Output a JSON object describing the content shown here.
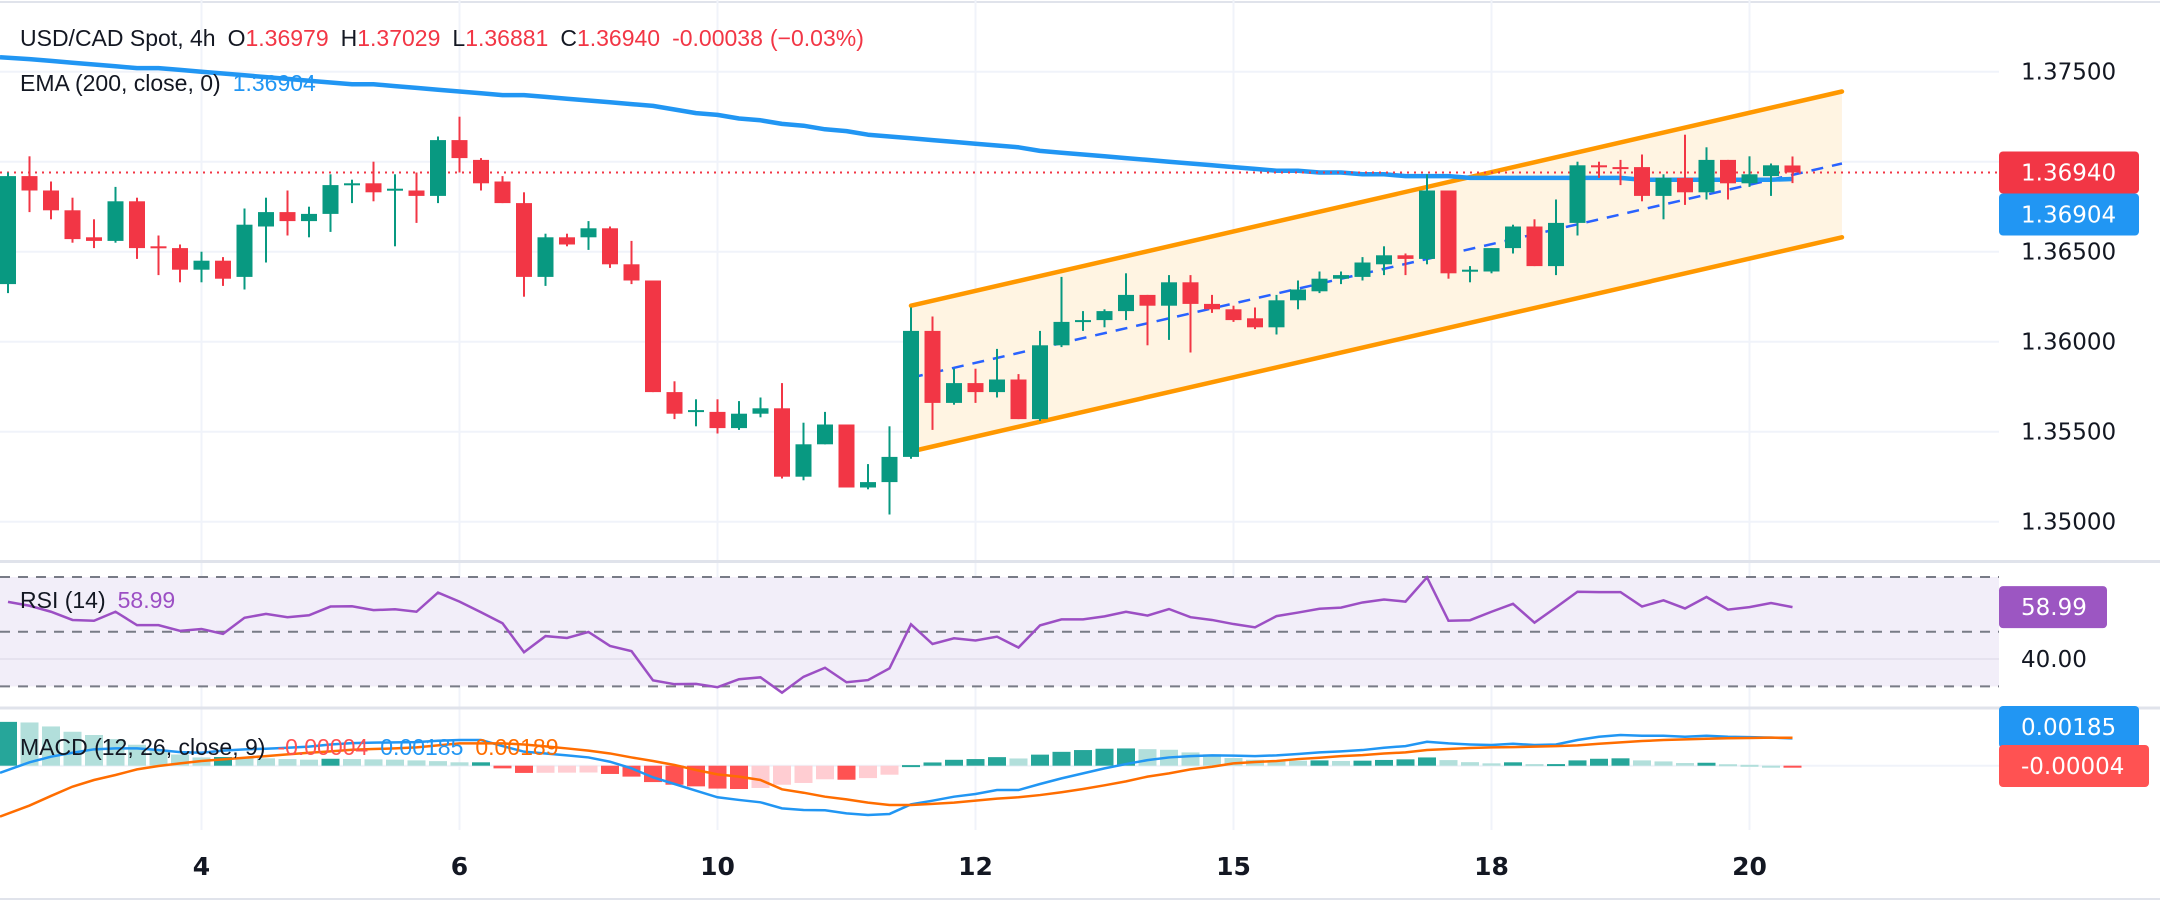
{
  "header": {
    "symbol": "USD/CAD Spot, 4h",
    "o_label": "O",
    "open": "1.36979",
    "h_label": "H",
    "high": "1.37029",
    "l_label": "L",
    "low": "1.36881",
    "c_label": "C",
    "close": "1.36940",
    "change": "-0.00038",
    "change_pct": "(−0.03%)"
  },
  "ema_legend": {
    "label": "EMA (200, close, 0)",
    "value": "1.36904"
  },
  "rsi_legend": {
    "label": "RSI (14)",
    "value": "58.99"
  },
  "macd_legend": {
    "label": "MACD (12, 26, close, 9)",
    "hist": "-0.00004",
    "macd": "0.00185",
    "signal": "0.00189"
  },
  "price_axis": {
    "ticks": [
      "1.37500",
      "1.36500",
      "1.36000",
      "1.35500",
      "1.35000"
    ],
    "last_price_tag": "1.36940",
    "ema_tag": "1.36904"
  },
  "rsi_axis": {
    "ticks": [
      "40.00"
    ],
    "value_tag": "58.99"
  },
  "macd_axis": {
    "macd_tag": "0.00185",
    "hist_tag": "-0.00004"
  },
  "time_axis": {
    "ticks": [
      {
        "label": "4",
        "bar": 9
      },
      {
        "label": "6",
        "bar": 21
      },
      {
        "label": "10",
        "bar": 33
      },
      {
        "label": "12",
        "bar": 45
      },
      {
        "label": "15",
        "bar": 57
      },
      {
        "label": "18",
        "bar": 69
      },
      {
        "label": "20",
        "bar": 81
      }
    ]
  },
  "colors": {
    "up": "#089981",
    "down": "#f23645",
    "ema": "#2196f3",
    "channel": "#ff9800",
    "channel_fill": "#fff4e2",
    "midline": "#2962ff",
    "rsi": "#9c4fc4",
    "rsi_band": "#f2eef9",
    "macd": "#2196f3",
    "signal": "#ff6d00",
    "hist_up_strong": "#26a69a",
    "hist_up_weak": "#b2dfdb",
    "hist_dn_strong": "#ff5252",
    "hist_dn_weak": "#ffcdd2",
    "text": "#131722"
  },
  "chart_data": {
    "type": "candlestick",
    "timeframe": "4h",
    "price_range": [
      1.3475,
      1.379
    ],
    "candles": [
      [
        1.3632,
        1.3694,
        1.3627,
        1.3692
      ],
      [
        1.3692,
        1.3703,
        1.3672,
        1.3684
      ],
      [
        1.3684,
        1.3689,
        1.3668,
        1.3673
      ],
      [
        1.3673,
        1.368,
        1.3655,
        1.3657
      ],
      [
        1.3658,
        1.3668,
        1.3652,
        1.3656
      ],
      [
        1.3656,
        1.3686,
        1.3655,
        1.3678
      ],
      [
        1.3678,
        1.368,
        1.3646,
        1.3652
      ],
      [
        1.3653,
        1.3659,
        1.3637,
        1.3652
      ],
      [
        1.3652,
        1.3654,
        1.3633,
        1.364
      ],
      [
        1.364,
        1.365,
        1.3633,
        1.3645
      ],
      [
        1.3645,
        1.3647,
        1.3631,
        1.3635
      ],
      [
        1.3636,
        1.3674,
        1.3629,
        1.3665
      ],
      [
        1.3664,
        1.368,
        1.3644,
        1.3672
      ],
      [
        1.3672,
        1.3684,
        1.3659,
        1.3667
      ],
      [
        1.3667,
        1.3675,
        1.3658,
        1.3671
      ],
      [
        1.3671,
        1.3693,
        1.3661,
        1.3687
      ],
      [
        1.3687,
        1.369,
        1.3677,
        1.3688
      ],
      [
        1.3688,
        1.37,
        1.3678,
        1.3683
      ],
      [
        1.3684,
        1.3693,
        1.3653,
        1.3685
      ],
      [
        1.3684,
        1.3694,
        1.3666,
        1.3681
      ],
      [
        1.3681,
        1.3714,
        1.3677,
        1.3712
      ],
      [
        1.3712,
        1.3725,
        1.3694,
        1.3702
      ],
      [
        1.3701,
        1.3702,
        1.3684,
        1.3688
      ],
      [
        1.3689,
        1.3692,
        1.3677,
        1.3677
      ],
      [
        1.3677,
        1.3683,
        1.3625,
        1.3636
      ],
      [
        1.3636,
        1.366,
        1.3631,
        1.3658
      ],
      [
        1.3658,
        1.366,
        1.3653,
        1.3654
      ],
      [
        1.3658,
        1.3667,
        1.3651,
        1.3663
      ],
      [
        1.3663,
        1.3664,
        1.3641,
        1.3643
      ],
      [
        1.3643,
        1.3656,
        1.3632,
        1.3634
      ],
      [
        1.3634,
        1.3634,
        1.3572,
        1.3572
      ],
      [
        1.3572,
        1.3578,
        1.3557,
        1.356
      ],
      [
        1.3561,
        1.3568,
        1.3553,
        1.3562
      ],
      [
        1.3561,
        1.3568,
        1.3549,
        1.3552
      ],
      [
        1.3552,
        1.3567,
        1.3551,
        1.356
      ],
      [
        1.356,
        1.3569,
        1.3558,
        1.3563
      ],
      [
        1.3563,
        1.3577,
        1.3524,
        1.3525
      ],
      [
        1.3525,
        1.3555,
        1.3523,
        1.3543
      ],
      [
        1.3543,
        1.3561,
        1.3543,
        1.3554
      ],
      [
        1.3554,
        1.3554,
        1.3519,
        1.3519
      ],
      [
        1.3519,
        1.3532,
        1.3518,
        1.3522
      ],
      [
        1.3522,
        1.3553,
        1.3504,
        1.3536
      ],
      [
        1.3536,
        1.3619,
        1.3535,
        1.3606
      ],
      [
        1.3606,
        1.3614,
        1.3551,
        1.3566
      ],
      [
        1.3566,
        1.3585,
        1.3565,
        1.3577
      ],
      [
        1.3577,
        1.3585,
        1.3566,
        1.3572
      ],
      [
        1.3572,
        1.3596,
        1.3569,
        1.3579
      ],
      [
        1.3579,
        1.3582,
        1.3557,
        1.3557
      ],
      [
        1.3557,
        1.3606,
        1.3556,
        1.3598
      ],
      [
        1.3598,
        1.3636,
        1.3597,
        1.3611
      ],
      [
        1.3611,
        1.3617,
        1.3606,
        1.3612
      ],
      [
        1.3612,
        1.3618,
        1.3608,
        1.3617
      ],
      [
        1.3617,
        1.3638,
        1.3612,
        1.3626
      ],
      [
        1.3626,
        1.3626,
        1.3598,
        1.362
      ],
      [
        1.362,
        1.3637,
        1.3601,
        1.3633
      ],
      [
        1.3633,
        1.3637,
        1.3594,
        1.3621
      ],
      [
        1.3621,
        1.3626,
        1.3616,
        1.3618
      ],
      [
        1.3618,
        1.362,
        1.3611,
        1.3612
      ],
      [
        1.3613,
        1.3619,
        1.3607,
        1.3608
      ],
      [
        1.3608,
        1.3626,
        1.3604,
        1.3623
      ],
      [
        1.3623,
        1.3634,
        1.3618,
        1.3629
      ],
      [
        1.3628,
        1.3639,
        1.3627,
        1.3635
      ],
      [
        1.3635,
        1.3639,
        1.3632,
        1.3637
      ],
      [
        1.3636,
        1.3647,
        1.3634,
        1.3644
      ],
      [
        1.3643,
        1.3653,
        1.3637,
        1.3648
      ],
      [
        1.3648,
        1.3649,
        1.3637,
        1.3646
      ],
      [
        1.3646,
        1.3693,
        1.3643,
        1.3684
      ],
      [
        1.3684,
        1.3684,
        1.3635,
        1.3638
      ],
      [
        1.3639,
        1.3642,
        1.3633,
        1.364
      ],
      [
        1.3639,
        1.3652,
        1.3638,
        1.3652
      ],
      [
        1.3652,
        1.3665,
        1.3649,
        1.3664
      ],
      [
        1.3664,
        1.3668,
        1.3642,
        1.3642
      ],
      [
        1.3642,
        1.3679,
        1.3637,
        1.3666
      ],
      [
        1.3666,
        1.37,
        1.3659,
        1.3698
      ],
      [
        1.3698,
        1.37,
        1.3691,
        1.3697
      ],
      [
        1.3697,
        1.3701,
        1.3687,
        1.3696
      ],
      [
        1.3697,
        1.3704,
        1.3678,
        1.3681
      ],
      [
        1.3681,
        1.3693,
        1.3668,
        1.3691
      ],
      [
        1.3691,
        1.3715,
        1.3676,
        1.3683
      ],
      [
        1.3683,
        1.3708,
        1.3679,
        1.3701
      ],
      [
        1.3701,
        1.3701,
        1.3679,
        1.3688
      ],
      [
        1.3688,
        1.3703,
        1.3686,
        1.3693
      ],
      [
        1.3692,
        1.3699,
        1.3681,
        1.3698
      ],
      [
        1.36979,
        1.37029,
        1.36881,
        1.3694
      ]
    ],
    "last_price": 1.3694,
    "ema200": [
      1.3758,
      1.3757,
      1.3756,
      1.3755,
      1.3754,
      1.3753,
      1.3752,
      1.3752,
      1.3751,
      1.375,
      1.3749,
      1.3748,
      1.3747,
      1.3746,
      1.3745,
      1.3744,
      1.3743,
      1.3743,
      1.3742,
      1.3741,
      1.374,
      1.3739,
      1.3738,
      1.3737,
      1.3737,
      1.3736,
      1.3735,
      1.3734,
      1.3733,
      1.3732,
      1.3731,
      1.3729,
      1.3727,
      1.3726,
      1.3724,
      1.3723,
      1.3721,
      1.372,
      1.3718,
      1.3717,
      1.3715,
      1.3714,
      1.3713,
      1.3712,
      1.3711,
      1.371,
      1.3709,
      1.3708,
      1.3706,
      1.3705,
      1.3704,
      1.3703,
      1.3702,
      1.3701,
      1.37,
      1.3699,
      1.3698,
      1.3697,
      1.3696,
      1.3695,
      1.3695,
      1.3694,
      1.3694,
      1.3693,
      1.3693,
      1.3692,
      1.3692,
      1.3692,
      1.3691,
      1.3691,
      1.3691,
      1.3691,
      1.3691,
      1.3691,
      1.3691,
      1.3691,
      1.369,
      1.369,
      1.369,
      1.369,
      1.369,
      1.369,
      1.369,
      1.36904
    ],
    "channel": {
      "start_bar": 42,
      "end_bar": 85.3,
      "upper": [
        1.362,
        1.3739
      ],
      "lower": [
        1.3539,
        1.3658
      ],
      "mid": [
        1.358,
        1.3699
      ]
    },
    "rsi": {
      "levels": [
        70,
        50,
        30
      ],
      "range": [
        30,
        70
      ],
      "values": [
        60.9,
        59.5,
        57.3,
        54.3,
        54.0,
        57.3,
        52.4,
        52.4,
        50.3,
        51.0,
        49.2,
        55.1,
        56.5,
        55.3,
        56.0,
        59.2,
        59.3,
        57.9,
        58.2,
        57.3,
        64.3,
        61.0,
        57.1,
        53.1,
        42.5,
        48.4,
        47.7,
        49.9,
        44.8,
        42.9,
        32.2,
        30.8,
        30.9,
        29.7,
        32.6,
        33.3,
        27.7,
        33.5,
        36.8,
        31.5,
        32.3,
        36.6,
        52.7,
        45.5,
        47.6,
        46.8,
        48.2,
        44.2,
        52.3,
        54.5,
        54.5,
        55.6,
        57.3,
        55.9,
        58.3,
        55.3,
        54.3,
        52.8,
        51.6,
        55.7,
        57.0,
        58.4,
        58.8,
        60.7,
        61.8,
        61.0,
        69.9,
        54.0,
        54.2,
        57.3,
        60.2,
        53.3,
        58.9,
        64.6,
        64.5,
        64.5,
        59.2,
        61.5,
        58.5,
        62.7,
        58.1,
        59.0,
        60.5,
        58.99
      ]
    },
    "macd": {
      "macd": [
        -0.00048,
        0.00023,
        0.00061,
        0.00088,
        0.00111,
        0.00117,
        0.00117,
        0.00106,
        0.00092,
        0.00088,
        0.00102,
        0.00111,
        0.00115,
        0.00122,
        0.00129,
        0.00144,
        0.00153,
        0.00156,
        0.00158,
        0.0016,
        0.00169,
        0.00174,
        0.00174,
        0.00133,
        0.00095,
        0.00083,
        0.0007,
        0.00056,
        0.00027,
        -0.00018,
        -0.00079,
        -0.00124,
        -0.00169,
        -0.00214,
        -0.00232,
        -0.00248,
        -0.00289,
        -0.003,
        -0.00302,
        -0.00323,
        -0.00334,
        -0.00327,
        -0.00262,
        -0.00237,
        -0.0021,
        -0.00192,
        -0.00165,
        -0.00165,
        -0.00124,
        -0.00086,
        -0.00052,
        -0.00018,
        0.00011,
        0.00038,
        0.00056,
        0.00065,
        0.0007,
        0.00068,
        0.00065,
        0.0007,
        0.00079,
        0.0009,
        0.00097,
        0.00106,
        0.00122,
        0.00133,
        0.00162,
        0.00151,
        0.00144,
        0.0014,
        0.00149,
        0.0014,
        0.00144,
        0.00174,
        0.00196,
        0.00208,
        0.00203,
        0.00203,
        0.00196,
        0.00203,
        0.00196,
        0.00194,
        0.0019,
        0.00185
      ],
      "signal": [
        -0.00345,
        -0.0027,
        -0.00205,
        -0.00142,
        -0.00097,
        -0.00063,
        -0.00025,
        -2e-05,
        0.00016,
        0.00032,
        0.00043,
        0.00054,
        0.00065,
        0.00077,
        0.00088,
        0.00097,
        0.00108,
        0.00113,
        0.00117,
        0.00124,
        0.00138,
        0.00151,
        0.00151,
        0.00151,
        0.00144,
        0.00131,
        0.00117,
        0.00102,
        0.00083,
        0.00056,
        0.00032,
        5e-05,
        -0.00029,
        -0.00059,
        -0.00074,
        -0.00097,
        -0.0016,
        -0.00183,
        -0.0021,
        -0.00228,
        -0.0025,
        -0.00266,
        -0.00266,
        -0.00259,
        -0.0025,
        -0.00237,
        -0.00223,
        -0.00214,
        -0.00199,
        -0.0018,
        -0.00158,
        -0.00133,
        -0.00106,
        -0.00074,
        -0.00052,
        -0.00025,
        -7e-05,
        0.00016,
        0.00025,
        0.00032,
        0.00045,
        0.00054,
        0.00065,
        0.00072,
        0.00083,
        0.0009,
        0.00106,
        0.00113,
        0.0012,
        0.00124,
        0.00126,
        0.00129,
        0.00133,
        0.00138,
        0.00149,
        0.00158,
        0.00167,
        0.00174,
        0.00178,
        0.00183,
        0.00186,
        0.00188,
        0.0019,
        0.00189
      ]
    }
  }
}
